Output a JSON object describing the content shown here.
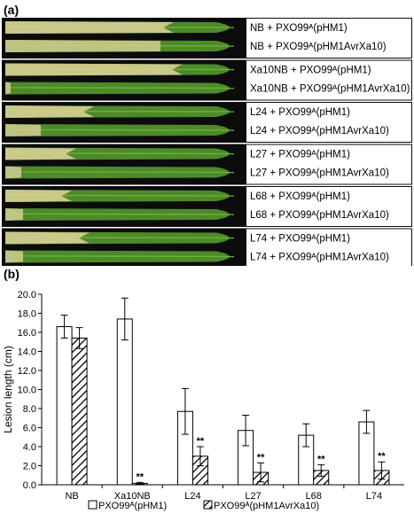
{
  "panel_a": {
    "letter": "(a)",
    "groups": [
      {
        "control": "NB + PXO99ᴬ(pHM1)",
        "treated": "NB + PXO99ᴬ(pHM1AvrXa10)"
      },
      {
        "control": "Xa10NB + PXO99ᴬ(pHM1)",
        "treated": "Xa10NB + PXO99ᴬ(pHM1AvrXa10)"
      },
      {
        "control": "L24 + PXO99ᴬ(pHM1)",
        "treated": "L24 + PXO99ᴬ(pHM1AvrXa10)"
      },
      {
        "control": "L27 + PXO99ᴬ(pHM1)",
        "treated": "L27 + PXO99ᴬ(pHM1AvrXa10)"
      },
      {
        "control": "L68 + PXO99ᴬ(pHM1)",
        "treated": "L68 + PXO99ᴬ(pHM1AvrXa10)"
      },
      {
        "control": "L74 + PXO99ᴬ(pHM1)",
        "treated": "L74 + PXO99ᴬ(pHM1AvrXa10)"
      }
    ]
  },
  "panel_b": {
    "letter": "(b)"
  },
  "chart_data": {
    "type": "bar",
    "title": "",
    "xlabel": "",
    "ylabel": "Lesion length (cm)",
    "ylim": [
      0,
      20
    ],
    "y_ticks": [
      "0.0",
      "2.0",
      "4.0",
      "6.0",
      "8.0",
      "10.0",
      "12.0",
      "14.0",
      "16.0",
      "18.0",
      "20.0"
    ],
    "categories": [
      "NB",
      "Xa10NB",
      "L24",
      "L27",
      "L68",
      "L74"
    ],
    "series": [
      {
        "name": "PXO99ᴬ(pHM1)",
        "fill": "white",
        "values": [
          16.6,
          17.4,
          7.7,
          5.7,
          5.2,
          6.6
        ],
        "errors": [
          1.2,
          2.2,
          2.4,
          1.6,
          1.2,
          1.2
        ],
        "significance": [
          "",
          "",
          "",
          "",
          "",
          ""
        ]
      },
      {
        "name": "PXO99ᴬ(pHM1AvrXa10)",
        "fill": "hatched",
        "values": [
          15.4,
          0.15,
          3.0,
          1.3,
          1.5,
          1.5
        ],
        "errors": [
          1.1,
          0.1,
          1.0,
          1.0,
          0.6,
          0.9
        ],
        "significance": [
          "",
          "**",
          "**",
          "**",
          "**",
          "**"
        ]
      }
    ],
    "grid": false,
    "legend_position": "bottom"
  }
}
